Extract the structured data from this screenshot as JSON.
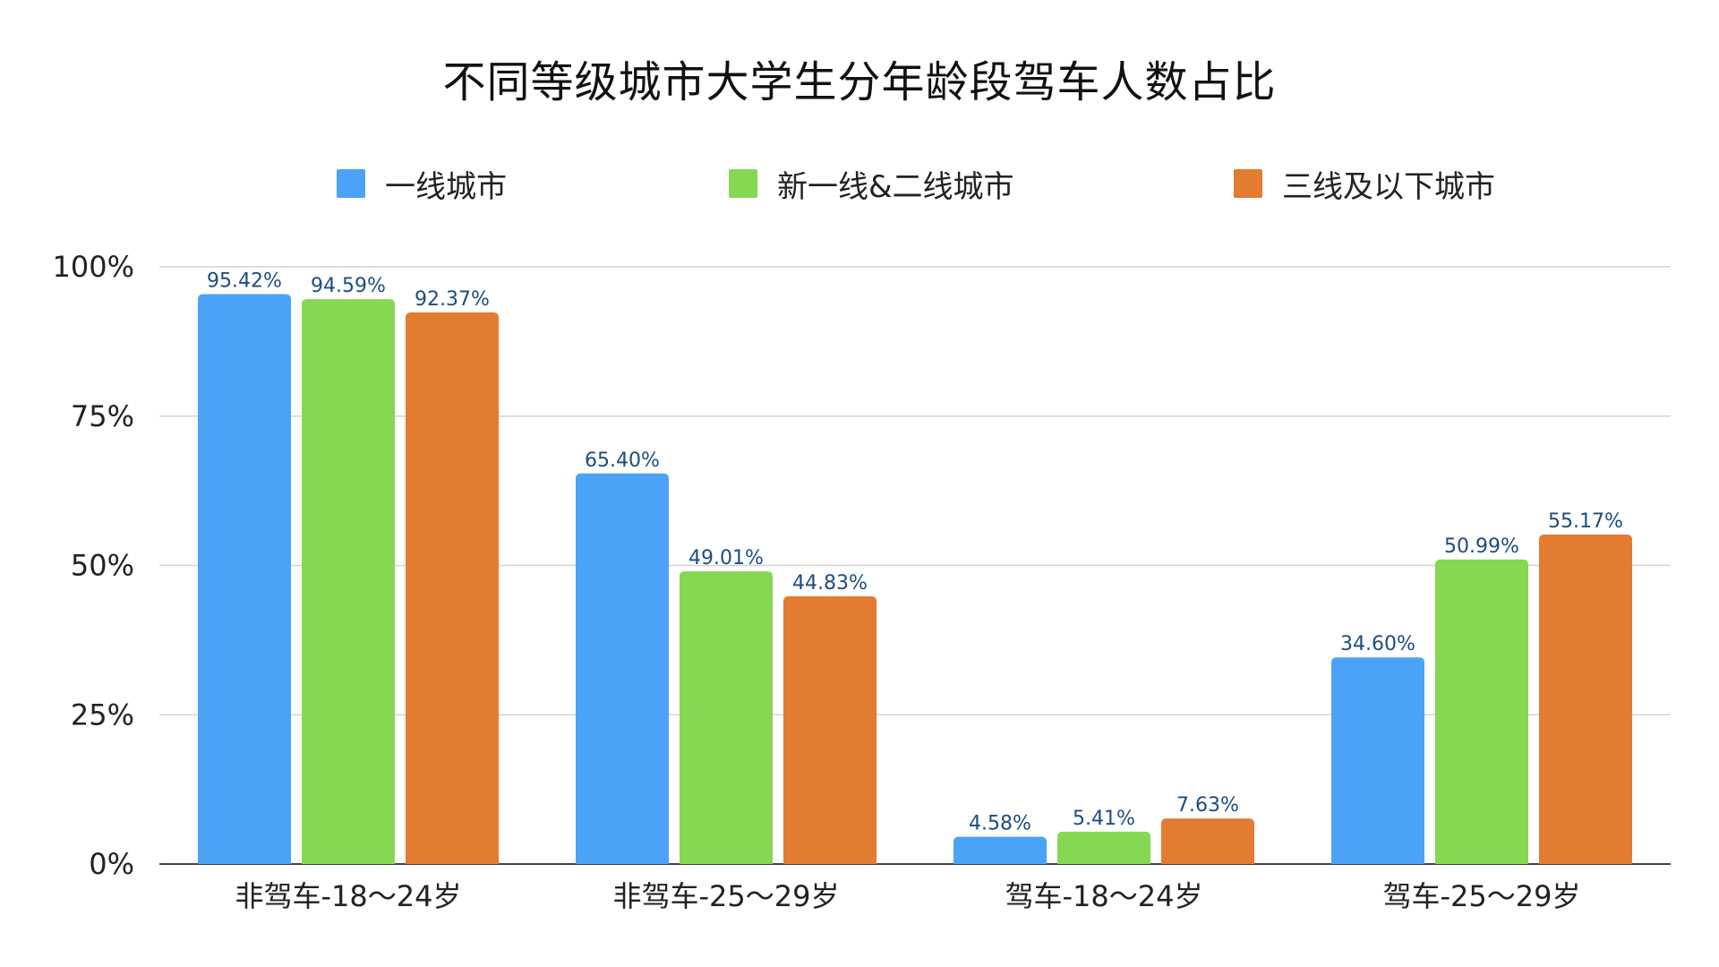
{
  "chart_data": {
    "type": "bar",
    "title": "不同等级城市大学生分年龄段驾车人数占比",
    "xlabel": "",
    "ylabel": "",
    "ylim": [
      0,
      100
    ],
    "y_ticks": [
      "0%",
      "25%",
      "50%",
      "75%",
      "100%"
    ],
    "y_tick_values": [
      0,
      25,
      50,
      75,
      100
    ],
    "grid": true,
    "legend_position": "top",
    "categories": [
      "非驾车-18～24岁",
      "非驾车-25～29岁",
      "驾车-18～24岁",
      "驾车-25～29岁"
    ],
    "series": [
      {
        "name": "一线城市",
        "color": "#4aa3f7",
        "values": [
          95.42,
          65.4,
          4.58,
          34.6
        ],
        "labels": [
          "95.42%",
          "65.40%",
          "4.58%",
          "34.60%"
        ]
      },
      {
        "name": "新一线&二线城市",
        "color": "#86d752",
        "values": [
          94.59,
          49.01,
          5.41,
          50.99
        ],
        "labels": [
          "94.59%",
          "49.01%",
          "5.41%",
          "50.99%"
        ]
      },
      {
        "name": "三线及以下城市",
        "color": "#e37b31",
        "values": [
          92.37,
          44.83,
          7.63,
          55.17
        ],
        "labels": [
          "92.37%",
          "44.83%",
          "7.63%",
          "55.17%"
        ]
      }
    ]
  }
}
